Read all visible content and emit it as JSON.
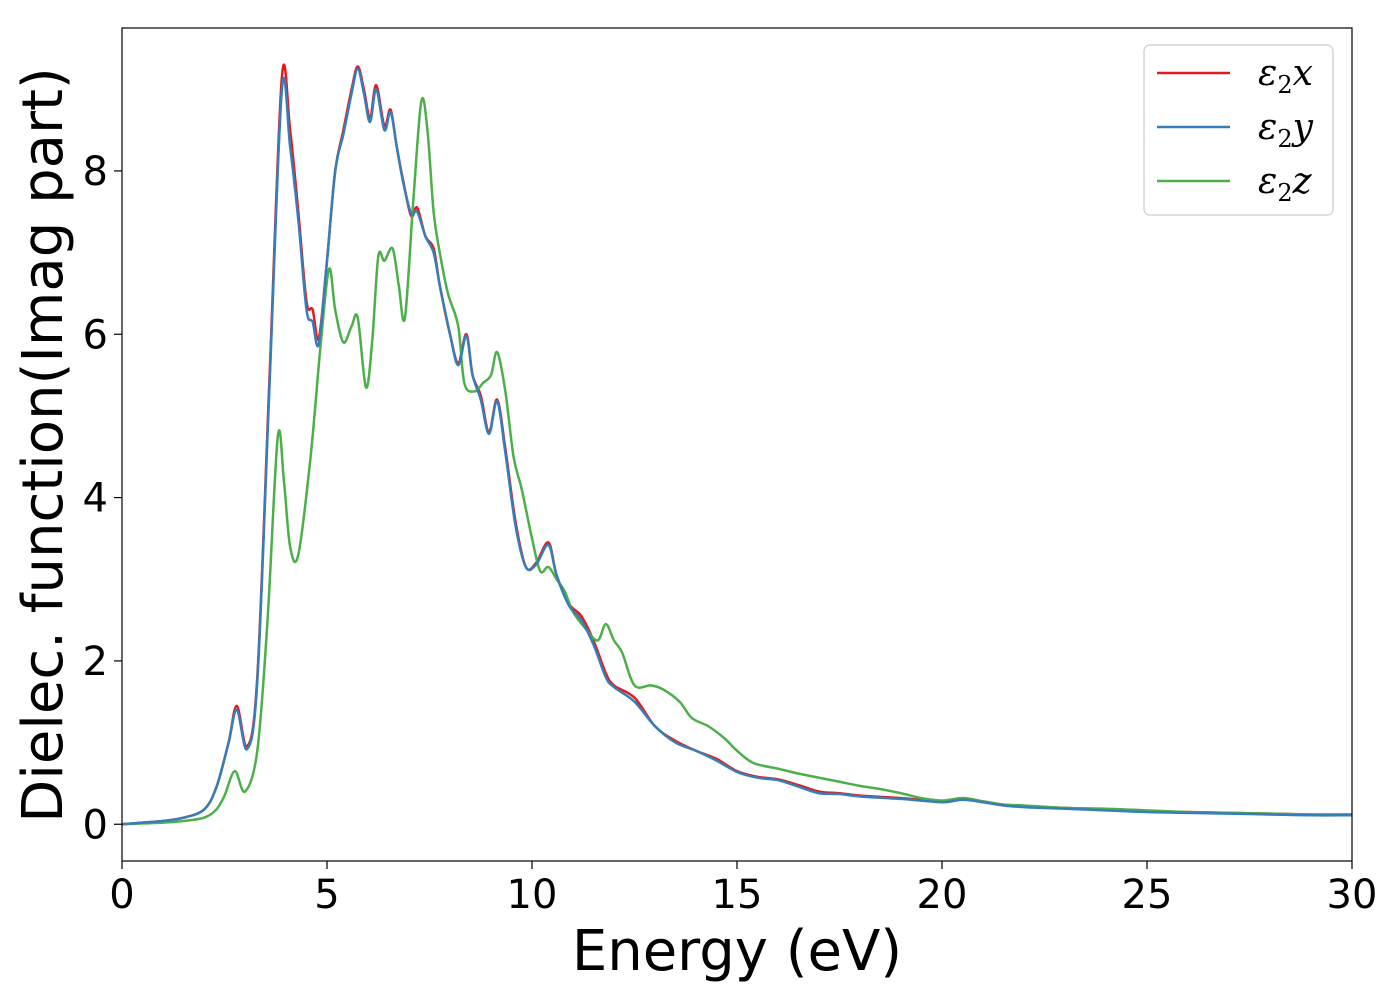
{
  "chart_data": {
    "type": "line",
    "title": "",
    "xlabel": "Energy (eV)",
    "ylabel": "Dielec. function(Imag part)",
    "xlim": [
      0,
      30
    ],
    "ylim": [
      -0.45,
      9.75
    ],
    "xticks": [
      0,
      5,
      10,
      15,
      20,
      25,
      30
    ],
    "xtick_labels": [
      "0",
      "5",
      "10",
      "15",
      "20",
      "25",
      "30"
    ],
    "yticks": [
      0,
      2,
      4,
      6,
      8
    ],
    "ytick_labels": [
      "0",
      "2",
      "4",
      "6",
      "8"
    ],
    "grid": false,
    "legend_position": "top-right",
    "series": [
      {
        "name": "ε2x",
        "legend_symbol": "ε",
        "legend_sub": "2",
        "legend_var": "x",
        "color": "#e41a1c",
        "points": [
          [
            0,
            0
          ],
          [
            0.5,
            0.02
          ],
          [
            1,
            0.04
          ],
          [
            1.5,
            0.08
          ],
          [
            2,
            0.18
          ],
          [
            2.3,
            0.45
          ],
          [
            2.6,
            1.0
          ],
          [
            2.8,
            1.45
          ],
          [
            3.05,
            0.95
          ],
          [
            3.3,
            1.8
          ],
          [
            3.6,
            5.5
          ],
          [
            3.9,
            9.15
          ],
          [
            4.1,
            8.5
          ],
          [
            4.3,
            7.5
          ],
          [
            4.5,
            6.4
          ],
          [
            4.65,
            6.3
          ],
          [
            4.8,
            5.95
          ],
          [
            5.0,
            6.9
          ],
          [
            5.2,
            8.0
          ],
          [
            5.4,
            8.5
          ],
          [
            5.6,
            9.0
          ],
          [
            5.75,
            9.28
          ],
          [
            5.9,
            9.0
          ],
          [
            6.05,
            8.65
          ],
          [
            6.2,
            9.05
          ],
          [
            6.4,
            8.55
          ],
          [
            6.55,
            8.75
          ],
          [
            6.7,
            8.3
          ],
          [
            6.85,
            7.9
          ],
          [
            7.05,
            7.45
          ],
          [
            7.2,
            7.55
          ],
          [
            7.4,
            7.2
          ],
          [
            7.6,
            7.05
          ],
          [
            7.75,
            6.6
          ],
          [
            8.0,
            6.0
          ],
          [
            8.2,
            5.65
          ],
          [
            8.4,
            6.0
          ],
          [
            8.55,
            5.5
          ],
          [
            8.75,
            5.25
          ],
          [
            8.95,
            4.8
          ],
          [
            9.15,
            5.2
          ],
          [
            9.35,
            4.6
          ],
          [
            9.6,
            3.7
          ],
          [
            9.85,
            3.15
          ],
          [
            10.1,
            3.2
          ],
          [
            10.4,
            3.45
          ],
          [
            10.6,
            3.05
          ],
          [
            10.9,
            2.7
          ],
          [
            11.2,
            2.55
          ],
          [
            11.5,
            2.25
          ],
          [
            11.8,
            1.85
          ],
          [
            12.0,
            1.7
          ],
          [
            12.5,
            1.55
          ],
          [
            13.0,
            1.2
          ],
          [
            13.5,
            1.02
          ],
          [
            14.0,
            0.9
          ],
          [
            14.5,
            0.8
          ],
          [
            15.0,
            0.65
          ],
          [
            15.5,
            0.58
          ],
          [
            16.0,
            0.55
          ],
          [
            16.5,
            0.48
          ],
          [
            17.0,
            0.4
          ],
          [
            17.5,
            0.38
          ],
          [
            18.0,
            0.35
          ],
          [
            19.0,
            0.32
          ],
          [
            20.0,
            0.28
          ],
          [
            20.5,
            0.32
          ],
          [
            21.0,
            0.28
          ],
          [
            21.5,
            0.24
          ],
          [
            22.0,
            0.22
          ],
          [
            23.0,
            0.2
          ],
          [
            24.0,
            0.18
          ],
          [
            25.0,
            0.16
          ],
          [
            26.0,
            0.15
          ],
          [
            27.0,
            0.14
          ],
          [
            28.0,
            0.13
          ],
          [
            29.0,
            0.12
          ],
          [
            30,
            0.12
          ]
        ]
      },
      {
        "name": "ε2y",
        "legend_symbol": "ε",
        "legend_sub": "2",
        "legend_var": "y",
        "color": "#377eb8",
        "points": [
          [
            0,
            0
          ],
          [
            0.5,
            0.02
          ],
          [
            1,
            0.04
          ],
          [
            1.5,
            0.08
          ],
          [
            2,
            0.18
          ],
          [
            2.3,
            0.45
          ],
          [
            2.6,
            1.0
          ],
          [
            2.8,
            1.4
          ],
          [
            3.05,
            0.92
          ],
          [
            3.3,
            1.75
          ],
          [
            3.6,
            5.4
          ],
          [
            3.9,
            9.0
          ],
          [
            4.1,
            8.3
          ],
          [
            4.3,
            7.4
          ],
          [
            4.5,
            6.3
          ],
          [
            4.65,
            6.15
          ],
          [
            4.8,
            5.88
          ],
          [
            5.0,
            6.9
          ],
          [
            5.2,
            8.0
          ],
          [
            5.4,
            8.45
          ],
          [
            5.6,
            8.95
          ],
          [
            5.75,
            9.25
          ],
          [
            5.9,
            8.95
          ],
          [
            6.05,
            8.6
          ],
          [
            6.2,
            9.0
          ],
          [
            6.4,
            8.5
          ],
          [
            6.55,
            8.72
          ],
          [
            6.7,
            8.3
          ],
          [
            6.85,
            7.88
          ],
          [
            7.05,
            7.48
          ],
          [
            7.2,
            7.5
          ],
          [
            7.4,
            7.2
          ],
          [
            7.6,
            7.0
          ],
          [
            7.75,
            6.6
          ],
          [
            8.0,
            6.0
          ],
          [
            8.2,
            5.62
          ],
          [
            8.4,
            5.98
          ],
          [
            8.55,
            5.5
          ],
          [
            8.75,
            5.2
          ],
          [
            8.95,
            4.78
          ],
          [
            9.15,
            5.18
          ],
          [
            9.35,
            4.55
          ],
          [
            9.6,
            3.65
          ],
          [
            9.85,
            3.15
          ],
          [
            10.1,
            3.18
          ],
          [
            10.4,
            3.42
          ],
          [
            10.6,
            3.05
          ],
          [
            10.9,
            2.68
          ],
          [
            11.2,
            2.5
          ],
          [
            11.5,
            2.2
          ],
          [
            11.8,
            1.8
          ],
          [
            12.0,
            1.68
          ],
          [
            12.5,
            1.5
          ],
          [
            13.0,
            1.2
          ],
          [
            13.5,
            1.0
          ],
          [
            14.0,
            0.9
          ],
          [
            14.5,
            0.78
          ],
          [
            15.0,
            0.64
          ],
          [
            15.5,
            0.57
          ],
          [
            16.0,
            0.54
          ],
          [
            16.5,
            0.46
          ],
          [
            17.0,
            0.38
          ],
          [
            17.5,
            0.37
          ],
          [
            18.0,
            0.34
          ],
          [
            19.0,
            0.31
          ],
          [
            20.0,
            0.27
          ],
          [
            20.5,
            0.3
          ],
          [
            21.0,
            0.27
          ],
          [
            21.5,
            0.23
          ],
          [
            22.0,
            0.21
          ],
          [
            23.0,
            0.19
          ],
          [
            24.0,
            0.17
          ],
          [
            25.0,
            0.15
          ],
          [
            26.0,
            0.14
          ],
          [
            27.0,
            0.13
          ],
          [
            28.0,
            0.12
          ],
          [
            29.0,
            0.11
          ],
          [
            30,
            0.11
          ]
        ]
      },
      {
        "name": "ε2z",
        "legend_symbol": "ε",
        "legend_sub": "2",
        "legend_var": "z",
        "color": "#4daf4a",
        "points": [
          [
            0,
            0
          ],
          [
            0.5,
            0.01
          ],
          [
            1,
            0.02
          ],
          [
            1.5,
            0.04
          ],
          [
            2,
            0.08
          ],
          [
            2.3,
            0.18
          ],
          [
            2.5,
            0.35
          ],
          [
            2.75,
            0.65
          ],
          [
            3.0,
            0.4
          ],
          [
            3.3,
            0.9
          ],
          [
            3.55,
            2.5
          ],
          [
            3.8,
            4.75
          ],
          [
            3.95,
            4.2
          ],
          [
            4.1,
            3.4
          ],
          [
            4.3,
            3.3
          ],
          [
            4.6,
            4.5
          ],
          [
            4.85,
            5.9
          ],
          [
            5.05,
            6.8
          ],
          [
            5.2,
            6.3
          ],
          [
            5.4,
            5.9
          ],
          [
            5.6,
            6.1
          ],
          [
            5.75,
            6.2
          ],
          [
            5.95,
            5.35
          ],
          [
            6.1,
            5.9
          ],
          [
            6.25,
            6.95
          ],
          [
            6.4,
            6.9
          ],
          [
            6.6,
            7.05
          ],
          [
            6.75,
            6.6
          ],
          [
            6.9,
            6.2
          ],
          [
            7.1,
            7.6
          ],
          [
            7.3,
            8.85
          ],
          [
            7.45,
            8.5
          ],
          [
            7.6,
            7.5
          ],
          [
            7.75,
            7.0
          ],
          [
            7.95,
            6.5
          ],
          [
            8.2,
            6.1
          ],
          [
            8.35,
            5.4
          ],
          [
            8.6,
            5.3
          ],
          [
            8.8,
            5.4
          ],
          [
            9.0,
            5.5
          ],
          [
            9.15,
            5.78
          ],
          [
            9.35,
            5.3
          ],
          [
            9.55,
            4.5
          ],
          [
            9.75,
            4.1
          ],
          [
            10.0,
            3.5
          ],
          [
            10.2,
            3.1
          ],
          [
            10.4,
            3.15
          ],
          [
            10.6,
            3.0
          ],
          [
            10.8,
            2.85
          ],
          [
            11.0,
            2.6
          ],
          [
            11.3,
            2.4
          ],
          [
            11.6,
            2.25
          ],
          [
            11.8,
            2.45
          ],
          [
            12.0,
            2.25
          ],
          [
            12.2,
            2.1
          ],
          [
            12.5,
            1.7
          ],
          [
            12.9,
            1.7
          ],
          [
            13.2,
            1.65
          ],
          [
            13.6,
            1.5
          ],
          [
            13.9,
            1.3
          ],
          [
            14.3,
            1.2
          ],
          [
            14.7,
            1.05
          ],
          [
            15.0,
            0.9
          ],
          [
            15.4,
            0.75
          ],
          [
            16.0,
            0.68
          ],
          [
            16.5,
            0.62
          ],
          [
            17.0,
            0.57
          ],
          [
            17.5,
            0.52
          ],
          [
            18.0,
            0.47
          ],
          [
            18.5,
            0.43
          ],
          [
            19.0,
            0.38
          ],
          [
            19.5,
            0.32
          ],
          [
            20.0,
            0.29
          ],
          [
            20.5,
            0.32
          ],
          [
            21.0,
            0.28
          ],
          [
            21.5,
            0.24
          ],
          [
            22.0,
            0.23
          ],
          [
            23.0,
            0.2
          ],
          [
            24.0,
            0.19
          ],
          [
            25.0,
            0.17
          ],
          [
            26.0,
            0.15
          ],
          [
            27.0,
            0.14
          ],
          [
            28.0,
            0.13
          ],
          [
            29.0,
            0.12
          ],
          [
            30,
            0.12
          ]
        ]
      }
    ]
  }
}
